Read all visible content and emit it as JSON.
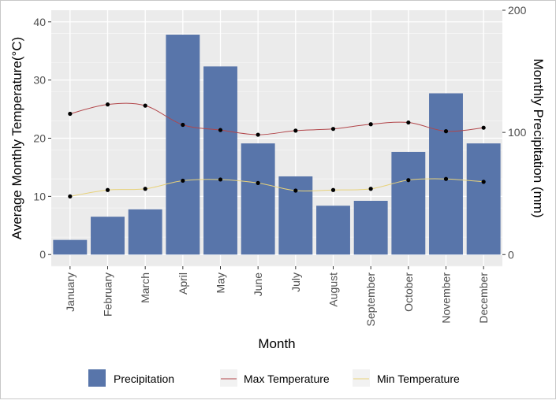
{
  "chart_data": {
    "type": "bar",
    "categories": [
      "January",
      "February",
      "March",
      "April",
      "May",
      "June",
      "July",
      "August",
      "September",
      "October",
      "November",
      "December"
    ],
    "xlabel": "Month",
    "ylabel": "Average Monthly Temperature(°C)",
    "y2label": "Monthly Precipitation (mm)",
    "ylim": [
      -2,
      42
    ],
    "y2lim": [
      -9.5,
      200
    ],
    "yticks": [
      0,
      10,
      20,
      30,
      40
    ],
    "y2ticks": [
      0,
      100,
      200
    ],
    "grid": true,
    "legend_position": "bottom",
    "series": [
      {
        "name": "Precipitation",
        "type": "bar",
        "axis": "right",
        "color": "#5875AA",
        "values": [
          12,
          31,
          37,
          180,
          154,
          91,
          64,
          40,
          44,
          84,
          132,
          91
        ]
      },
      {
        "name": "Max Temperature",
        "type": "line",
        "axis": "left",
        "color": "#B2464A",
        "values": [
          24.2,
          25.8,
          25.6,
          22.3,
          21.4,
          20.6,
          21.3,
          21.6,
          22.4,
          22.7,
          21.2,
          21.8
        ]
      },
      {
        "name": "Min Temperature",
        "type": "line",
        "axis": "left",
        "color": "#E8D27A",
        "values": [
          10.0,
          11.1,
          11.3,
          12.7,
          12.9,
          12.3,
          11.0,
          11.1,
          11.3,
          12.8,
          13.0,
          12.5
        ]
      }
    ]
  }
}
